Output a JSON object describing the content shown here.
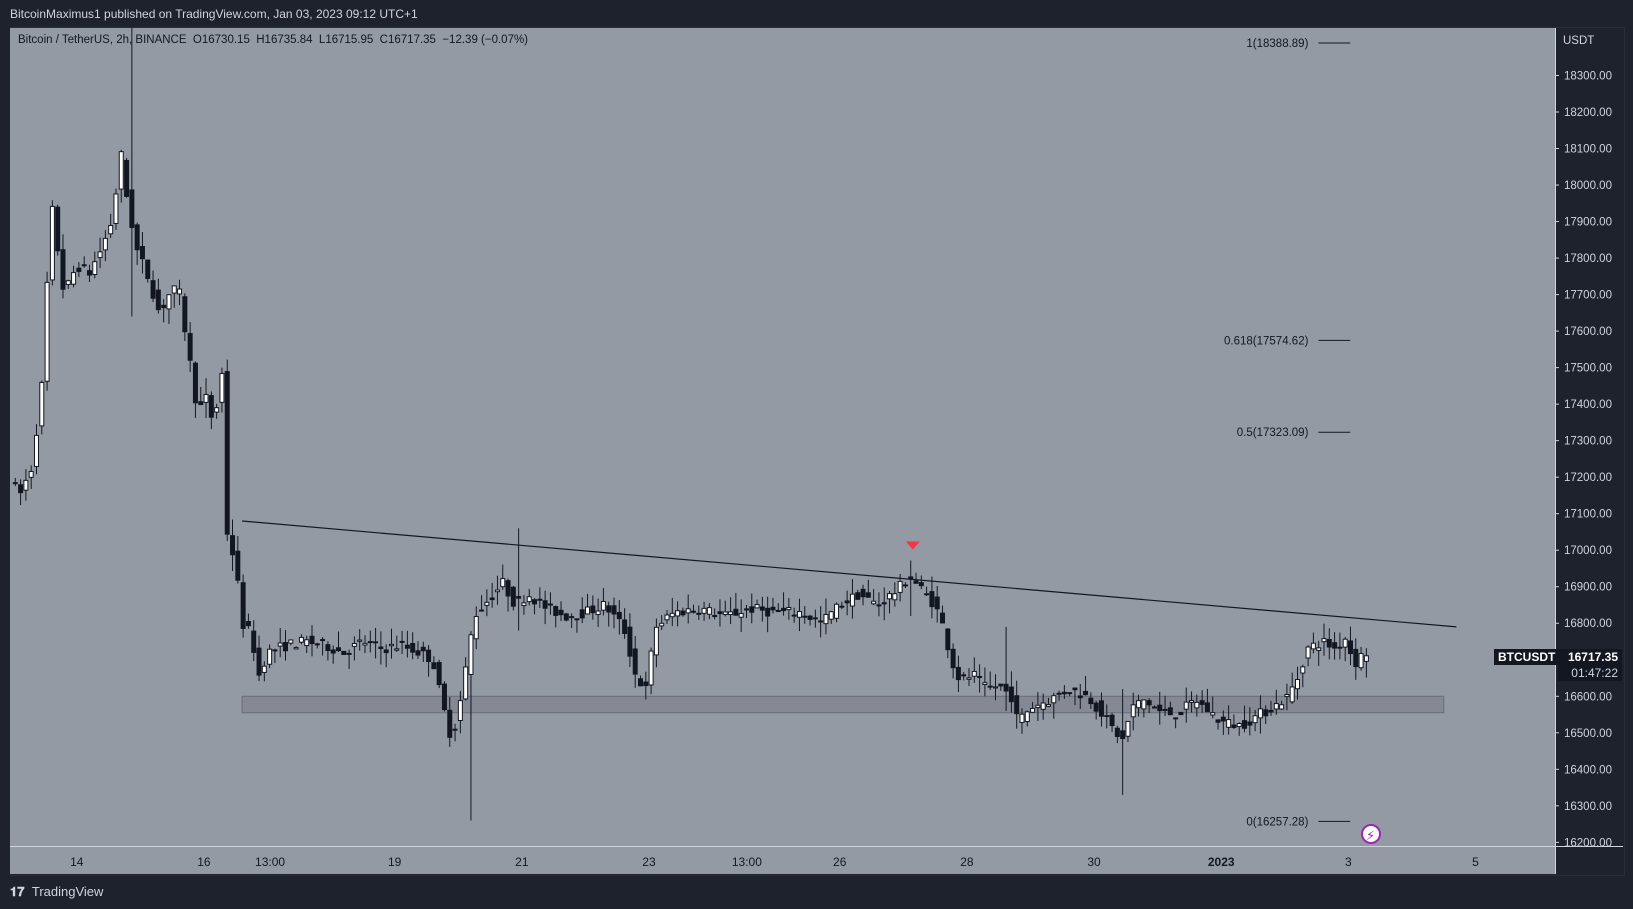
{
  "header": {
    "published_by": "BitcoinMaximus1 published on TradingView.com, Jan 03, 2023 09:12 UTC+1"
  },
  "legend": {
    "symbol": "Bitcoin / TetherUS, 2h, BINANCE",
    "o_key": "O",
    "o_val": "16730.15",
    "h_key": "H",
    "h_val": "16735.84",
    "l_key": "L",
    "l_val": "16715.95",
    "c_key": "C",
    "c_val": "16717.35",
    "change": "−12.39 (−0.07%)"
  },
  "footer": {
    "brand": "TradingView",
    "logo_icon": "tradingview-logo-icon"
  },
  "price_axis": {
    "currency": "USDT"
  },
  "last_price": {
    "ticker": "BTCUSDT",
    "price": "16717.35",
    "countdown": "01:47:22"
  },
  "colors": {
    "plot_bg": "#949aa3",
    "candle": "#131722",
    "arrow": "#f23645",
    "zone": "#787b86"
  },
  "chart_data": {
    "type": "candlestick",
    "symbol": "Bitcoin / TetherUS",
    "interval": "2h",
    "exchange": "BINANCE",
    "y_ticks": [
      16200,
      16300,
      16400,
      16500,
      16600,
      16700,
      16800,
      16900,
      17000,
      17100,
      17200,
      17300,
      17400,
      17500,
      17600,
      17700,
      17800,
      17900,
      18000,
      18100,
      18200,
      18300
    ],
    "y_tick_labels": [
      "16200.00",
      "16300.00",
      "16400.00",
      "16500.00",
      "16600.00",
      "16700.00",
      "16800.00",
      "16900.00",
      "17000.00",
      "17100.00",
      "17200.00",
      "17300.00",
      "17400.00",
      "17500.00",
      "17600.00",
      "17700.00",
      "17800.00",
      "17900.00",
      "18000.00",
      "18100.00",
      "18200.00",
      "18300.00"
    ],
    "ylim": [
      16190,
      18430
    ],
    "x_ticks": [
      "14",
      "16",
      "13:00",
      "19",
      "21",
      "23",
      "13:00",
      "26",
      "28",
      "30",
      "2023",
      "3",
      "5"
    ],
    "x_tick_days": [
      14,
      16,
      17.04,
      19,
      21,
      23,
      24.54,
      26,
      28,
      30,
      32,
      34,
      36
    ],
    "x_range_days": [
      12.95,
      37.25
    ],
    "price_path": [
      [
        12.95,
        17200
      ],
      [
        13.1,
        17150
      ],
      [
        13.3,
        17230
      ],
      [
        13.45,
        17450
      ],
      [
        13.6,
        17950
      ],
      [
        13.8,
        17700
      ],
      [
        14.0,
        17780
      ],
      [
        14.2,
        17760
      ],
      [
        14.4,
        17830
      ],
      [
        14.55,
        17900
      ],
      [
        14.7,
        18080
      ],
      [
        14.8,
        17950
      ],
      [
        14.95,
        17820
      ],
      [
        15.1,
        17760
      ],
      [
        15.3,
        17650
      ],
      [
        15.45,
        17700
      ],
      [
        15.6,
        17720
      ],
      [
        15.75,
        17550
      ],
      [
        15.9,
        17380
      ],
      [
        16.05,
        17420
      ],
      [
        16.15,
        17340
      ],
      [
        16.3,
        17500
      ],
      [
        16.35,
        17060
      ],
      [
        16.5,
        16960
      ],
      [
        16.6,
        16800
      ],
      [
        16.75,
        16770
      ],
      [
        16.85,
        16650
      ],
      [
        17.0,
        16720
      ],
      [
        17.3,
        16740
      ],
      [
        17.6,
        16750
      ],
      [
        17.9,
        16740
      ],
      [
        18.2,
        16720
      ],
      [
        18.5,
        16750
      ],
      [
        18.8,
        16730
      ],
      [
        19.1,
        16740
      ],
      [
        19.4,
        16720
      ],
      [
        19.6,
        16700
      ],
      [
        19.75,
        16580
      ],
      [
        19.9,
        16480
      ],
      [
        20.05,
        16600
      ],
      [
        20.25,
        16820
      ],
      [
        20.5,
        16870
      ],
      [
        20.7,
        16910
      ],
      [
        20.9,
        16850
      ],
      [
        21.1,
        16880
      ],
      [
        21.4,
        16840
      ],
      [
        21.7,
        16820
      ],
      [
        22.0,
        16830
      ],
      [
        22.3,
        16850
      ],
      [
        22.6,
        16790
      ],
      [
        22.8,
        16650
      ],
      [
        22.95,
        16620
      ],
      [
        23.1,
        16790
      ],
      [
        23.4,
        16830
      ],
      [
        23.8,
        16840
      ],
      [
        24.2,
        16820
      ],
      [
        24.6,
        16840
      ],
      [
        25.0,
        16830
      ],
      [
        25.4,
        16830
      ],
      [
        25.7,
        16800
      ],
      [
        26.0,
        16850
      ],
      [
        26.3,
        16880
      ],
      [
        26.6,
        16850
      ],
      [
        26.9,
        16890
      ],
      [
        27.1,
        16930
      ],
      [
        27.3,
        16890
      ],
      [
        27.5,
        16850
      ],
      [
        27.65,
        16780
      ],
      [
        27.75,
        16700
      ],
      [
        27.9,
        16640
      ],
      [
        28.1,
        16660
      ],
      [
        28.3,
        16620
      ],
      [
        28.5,
        16630
      ],
      [
        28.7,
        16600
      ],
      [
        28.8,
        16530
      ],
      [
        29.0,
        16570
      ],
      [
        29.3,
        16590
      ],
      [
        29.6,
        16620
      ],
      [
        29.9,
        16600
      ],
      [
        30.1,
        16560
      ],
      [
        30.3,
        16510
      ],
      [
        30.45,
        16480
      ],
      [
        30.6,
        16570
      ],
      [
        30.8,
        16590
      ],
      [
        31.0,
        16560
      ],
      [
        31.3,
        16550
      ],
      [
        31.6,
        16590
      ],
      [
        31.8,
        16560
      ],
      [
        32.0,
        16530
      ],
      [
        32.3,
        16520
      ],
      [
        32.6,
        16550
      ],
      [
        32.9,
        16580
      ],
      [
        33.05,
        16600
      ],
      [
        33.2,
        16650
      ],
      [
        33.35,
        16730
      ],
      [
        33.6,
        16750
      ],
      [
        33.8,
        16730
      ],
      [
        33.95,
        16760
      ],
      [
        34.1,
        16690
      ],
      [
        34.25,
        16720
      ],
      [
        34.35,
        16717.35
      ]
    ],
    "spikes": [
      {
        "x_day": 14.8,
        "high": 18430,
        "low": 17640
      },
      {
        "x_day": 20.2,
        "high": 16700,
        "low": 16260
      },
      {
        "x_day": 20.9,
        "high": 17060,
        "low": 16780
      },
      {
        "x_day": 27.05,
        "high": 16970,
        "low": 16820
      },
      {
        "x_day": 30.45,
        "high": 16620,
        "low": 16330
      },
      {
        "x_day": 28.6,
        "high": 16790,
        "low": 16560
      }
    ],
    "trendline": {
      "from": [
        16.6,
        17080
      ],
      "to": [
        35.7,
        16790
      ]
    },
    "support_zone": {
      "x_from_day": 16.6,
      "x_to_day": 35.5,
      "low": 16555,
      "high": 16600
    },
    "fib_levels": [
      {
        "ratio": "1",
        "price": 18388.89,
        "label": "1(18388.89)"
      },
      {
        "ratio": "0.618",
        "price": 17574.62,
        "label": "0.618(17574.62)"
      },
      {
        "ratio": "0.5",
        "price": 17323.09,
        "label": "0.5(17323.09)"
      },
      {
        "ratio": "0",
        "price": 16257.28,
        "label": "0(16257.28)"
      }
    ],
    "fib_x_range_days": [
      32.9,
      33.4
    ],
    "arrow_marker": {
      "x_day": 27.15,
      "price": 17010,
      "direction": "down"
    },
    "event_icon": {
      "x_day": 34.35,
      "name": "lightning-icon"
    },
    "last_price": 16717.35
  }
}
